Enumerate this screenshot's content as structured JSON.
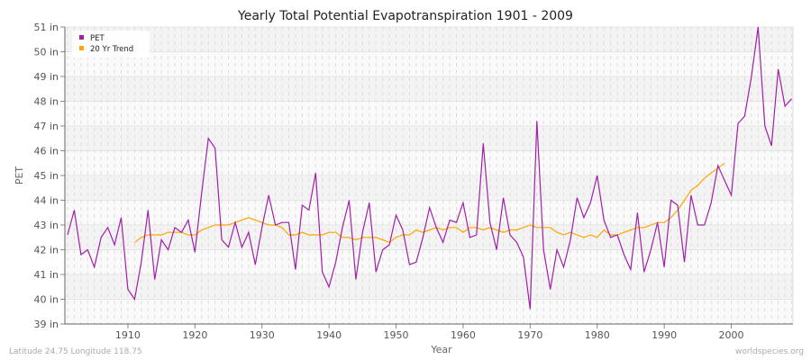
{
  "chart_data": {
    "type": "line",
    "title": "Yearly Total Potential Evapotranspiration 1901 - 2009",
    "xlabel": "Year",
    "ylabel": "PET",
    "xlim": [
      1901,
      2009
    ],
    "ylim": [
      39,
      51
    ],
    "x_ticks": [
      1910,
      1920,
      1930,
      1940,
      1950,
      1960,
      1970,
      1980,
      1990,
      2000
    ],
    "y_ticks": [
      39,
      40,
      41,
      42,
      43,
      44,
      45,
      46,
      47,
      48,
      49,
      50,
      51
    ],
    "y_tick_suffix": " in",
    "grid": true,
    "legend_position": "top-left",
    "series": [
      {
        "name": "PET",
        "color": "#a020a8",
        "x_start": 1901,
        "values": [
          42.6,
          43.6,
          41.8,
          42.0,
          41.3,
          42.5,
          42.9,
          42.2,
          43.3,
          40.4,
          40.0,
          41.5,
          43.6,
          40.8,
          42.4,
          42.0,
          42.9,
          42.7,
          43.2,
          41.9,
          44.3,
          46.5,
          46.1,
          42.4,
          42.1,
          43.1,
          42.1,
          42.7,
          41.4,
          42.9,
          44.2,
          43.0,
          43.1,
          43.1,
          41.2,
          43.8,
          43.6,
          45.1,
          41.1,
          40.5,
          41.5,
          42.9,
          44.0,
          40.8,
          42.7,
          43.9,
          41.1,
          42.0,
          42.2,
          43.4,
          42.8,
          41.4,
          41.5,
          42.5,
          43.7,
          42.9,
          42.3,
          43.2,
          43.1,
          43.9,
          42.5,
          42.6,
          46.3,
          43.1,
          42.0,
          44.1,
          42.6,
          42.3,
          41.7,
          39.6,
          47.2,
          42.0,
          40.4,
          42.0,
          41.3,
          42.4,
          44.1,
          43.3,
          43.9,
          45.0,
          43.2,
          42.5,
          42.6,
          41.8,
          41.2,
          43.5,
          41.1,
          42.0,
          43.1,
          41.3,
          44.0,
          43.8,
          41.5,
          44.2,
          43.0,
          43.0,
          43.9,
          45.4,
          44.8,
          44.2,
          47.1,
          47.4,
          49.0,
          51.0,
          47.0,
          46.2,
          49.3,
          47.8,
          48.1
        ]
      },
      {
        "name": "20 Yr Trend",
        "color": "#ffa500",
        "x_start": 1911,
        "values": [
          42.3,
          42.5,
          42.6,
          42.6,
          42.6,
          42.7,
          42.7,
          42.7,
          42.6,
          42.6,
          42.8,
          42.9,
          43.0,
          43.0,
          43.0,
          43.1,
          43.2,
          43.3,
          43.2,
          43.1,
          43.0,
          43.0,
          42.9,
          42.6,
          42.6,
          42.7,
          42.6,
          42.6,
          42.6,
          42.7,
          42.7,
          42.5,
          42.5,
          42.4,
          42.5,
          42.5,
          42.5,
          42.4,
          42.3,
          42.5,
          42.6,
          42.6,
          42.8,
          42.7,
          42.8,
          42.9,
          42.8,
          42.9,
          42.9,
          42.7,
          42.9,
          42.9,
          42.8,
          42.9,
          42.8,
          42.7,
          42.8,
          42.8,
          42.9,
          43.0,
          42.9,
          42.9,
          42.9,
          42.7,
          42.6,
          42.7,
          42.6,
          42.5,
          42.6,
          42.5,
          42.8,
          42.6,
          42.6,
          42.7,
          42.8,
          42.9,
          42.9,
          43.0,
          43.1,
          43.1,
          43.3,
          43.6,
          44.0,
          44.4,
          44.6,
          44.9,
          45.1,
          45.3,
          45.5
        ]
      }
    ]
  },
  "footer": {
    "location": "Latitude 24.75 Longitude 118.75",
    "source": "worldspecies.org"
  }
}
